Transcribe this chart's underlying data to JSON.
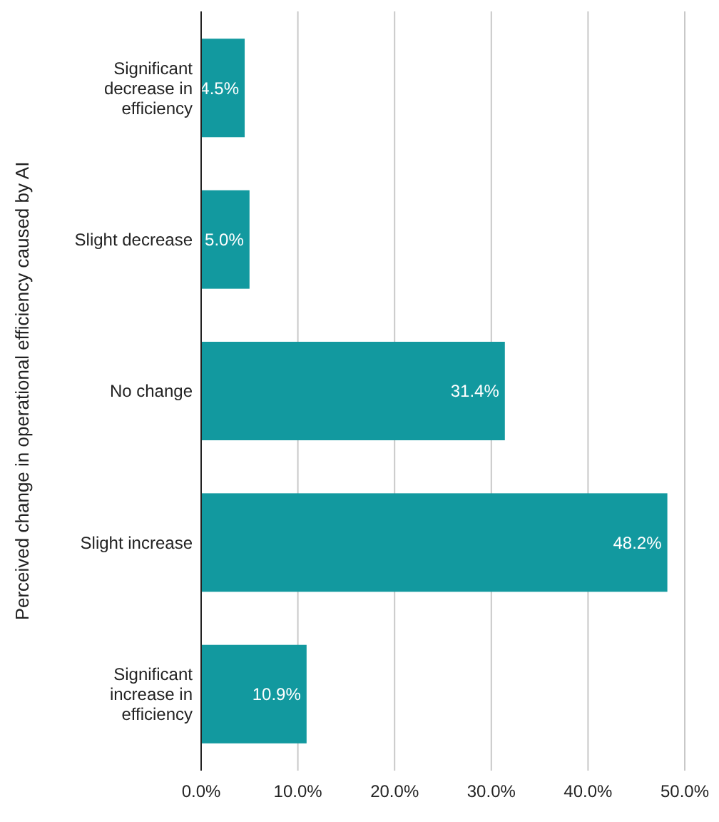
{
  "chart_data": {
    "type": "bar",
    "orientation": "horizontal",
    "ylabel": "Perceived change in operational efficiency caused by AI",
    "categories": [
      "Significant decrease in efficiency",
      "Slight decrease",
      "No change",
      "Slight increase",
      "Significant increase in efficiency"
    ],
    "values": [
      4.5,
      5.0,
      31.4,
      48.2,
      10.9
    ],
    "value_labels": [
      "4.5%",
      "5.0%",
      "31.4%",
      "48.2%",
      "10.9%"
    ],
    "color": "#12999f",
    "xlim": [
      0,
      50
    ],
    "xticks": [
      {
        "value": 0,
        "label": "0.0%"
      },
      {
        "value": 10,
        "label": "10.0%"
      },
      {
        "value": 20,
        "label": "20.0%"
      },
      {
        "value": 30,
        "label": "30.0%"
      },
      {
        "value": 40,
        "label": "40.0%"
      },
      {
        "value": 50,
        "label": "50.0%"
      }
    ],
    "grid": "x"
  }
}
